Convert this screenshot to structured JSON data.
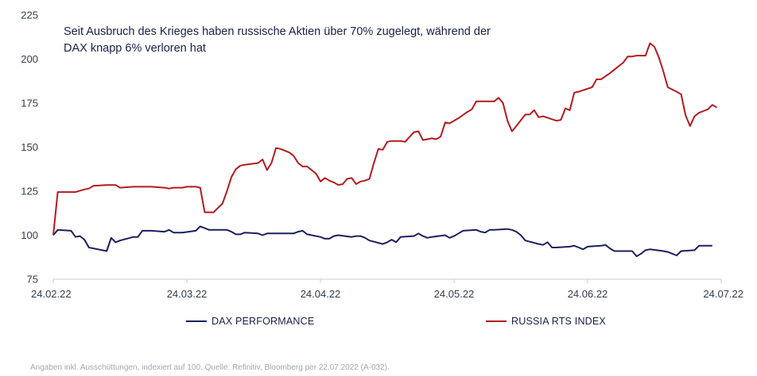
{
  "chart_data": {
    "type": "line",
    "annotation": "Seit Ausbruch des Krieges haben russische Aktien über 70% zugelegt, während der DAX knapp 6% verloren hat",
    "x_ticks": [
      "24.02.22",
      "24.03.22",
      "24.04.22",
      "24.05.22",
      "24.06.22",
      "24.07.22"
    ],
    "y_ticks": [
      75,
      100,
      125,
      150,
      175,
      200,
      225
    ],
    "ylim": [
      75,
      225
    ],
    "xlim": [
      "2022-02-24",
      "2022-07-24"
    ],
    "grid": false,
    "legend_position": "bottom",
    "series": [
      {
        "name": "DAX PERFORMANCE",
        "color": "#1b1f5e",
        "points": [
          [
            "2022-02-24",
            100
          ],
          [
            "2022-02-25",
            103
          ],
          [
            "2022-02-28",
            102.5
          ],
          [
            "2022-03-01",
            99
          ],
          [
            "2022-03-02",
            99.5
          ],
          [
            "2022-03-03",
            97.5
          ],
          [
            "2022-03-04",
            93
          ],
          [
            "2022-03-07",
            91.5
          ],
          [
            "2022-03-08",
            91
          ],
          [
            "2022-03-09",
            98.5
          ],
          [
            "2022-03-10",
            96
          ],
          [
            "2022-03-11",
            97
          ],
          [
            "2022-03-14",
            99
          ],
          [
            "2022-03-15",
            99
          ],
          [
            "2022-03-16",
            102.5
          ],
          [
            "2022-03-17",
            102.5
          ],
          [
            "2022-03-18",
            102.5
          ],
          [
            "2022-03-21",
            102
          ],
          [
            "2022-03-22",
            103
          ],
          [
            "2022-03-23",
            101.5
          ],
          [
            "2022-03-24",
            101.5
          ],
          [
            "2022-03-25",
            101.5
          ],
          [
            "2022-03-28",
            102.5
          ],
          [
            "2022-03-29",
            105
          ],
          [
            "2022-03-30",
            104
          ],
          [
            "2022-03-31",
            103
          ],
          [
            "2022-04-01",
            103
          ],
          [
            "2022-04-04",
            103
          ],
          [
            "2022-04-05",
            102
          ],
          [
            "2022-04-06",
            100.5
          ],
          [
            "2022-04-07",
            100.5
          ],
          [
            "2022-04-08",
            101.5
          ],
          [
            "2022-04-11",
            101
          ],
          [
            "2022-04-12",
            100
          ],
          [
            "2022-04-13",
            101
          ],
          [
            "2022-04-14",
            101
          ],
          [
            "2022-04-19",
            101
          ],
          [
            "2022-04-20",
            102
          ],
          [
            "2022-04-21",
            102.5
          ],
          [
            "2022-04-22",
            100.5
          ],
          [
            "2022-04-25",
            99
          ],
          [
            "2022-04-26",
            98
          ],
          [
            "2022-04-27",
            98
          ],
          [
            "2022-04-28",
            99.5
          ],
          [
            "2022-04-29",
            100
          ],
          [
            "2022-05-02",
            99
          ],
          [
            "2022-05-03",
            99.5
          ],
          [
            "2022-05-04",
            99.5
          ],
          [
            "2022-05-05",
            98.5
          ],
          [
            "2022-05-06",
            97
          ],
          [
            "2022-05-09",
            95
          ],
          [
            "2022-05-10",
            96
          ],
          [
            "2022-05-11",
            97.5
          ],
          [
            "2022-05-12",
            96
          ],
          [
            "2022-05-13",
            99
          ],
          [
            "2022-05-16",
            99.5
          ],
          [
            "2022-05-17",
            101
          ],
          [
            "2022-05-18",
            99.5
          ],
          [
            "2022-05-19",
            98.5
          ],
          [
            "2022-05-20",
            99
          ],
          [
            "2022-05-23",
            100
          ],
          [
            "2022-05-24",
            98.5
          ],
          [
            "2022-05-25",
            99.5
          ],
          [
            "2022-05-26",
            101
          ],
          [
            "2022-05-27",
            102.5
          ],
          [
            "2022-05-30",
            103
          ],
          [
            "2022-05-31",
            102
          ],
          [
            "2022-06-01",
            101.5
          ],
          [
            "2022-06-02",
            103
          ],
          [
            "2022-06-03",
            103
          ],
          [
            "2022-06-06",
            103.5
          ],
          [
            "2022-06-07",
            103
          ],
          [
            "2022-06-08",
            102
          ],
          [
            "2022-06-09",
            100
          ],
          [
            "2022-06-10",
            97
          ],
          [
            "2022-06-13",
            95
          ],
          [
            "2022-06-14",
            94.5
          ],
          [
            "2022-06-15",
            96
          ],
          [
            "2022-06-16",
            93
          ],
          [
            "2022-06-17",
            93
          ],
          [
            "2022-06-20",
            93.5
          ],
          [
            "2022-06-21",
            94
          ],
          [
            "2022-06-22",
            93
          ],
          [
            "2022-06-23",
            92
          ],
          [
            "2022-06-24",
            93.5
          ],
          [
            "2022-06-27",
            94
          ],
          [
            "2022-06-28",
            94.5
          ],
          [
            "2022-06-29",
            92.5
          ],
          [
            "2022-06-30",
            91
          ],
          [
            "2022-07-01",
            91
          ],
          [
            "2022-07-04",
            91
          ],
          [
            "2022-07-05",
            88
          ],
          [
            "2022-07-06",
            89.5
          ],
          [
            "2022-07-07",
            91.5
          ],
          [
            "2022-07-08",
            92
          ],
          [
            "2022-07-11",
            91
          ],
          [
            "2022-07-12",
            90.5
          ],
          [
            "2022-07-13",
            89.5
          ],
          [
            "2022-07-14",
            88.5
          ],
          [
            "2022-07-15",
            91
          ],
          [
            "2022-07-18",
            91.5
          ],
          [
            "2022-07-19",
            94
          ],
          [
            "2022-07-20",
            94
          ],
          [
            "2022-07-21",
            94
          ],
          [
            "2022-07-22",
            94
          ]
        ]
      },
      {
        "name": "RUSSIA RTS INDEX",
        "color": "#b31b20",
        "points": [
          [
            "2022-02-24",
            100
          ],
          [
            "2022-02-25",
            124.5
          ],
          [
            "2022-03-01",
            124.5
          ],
          [
            "2022-03-03",
            126
          ],
          [
            "2022-03-04",
            126.5
          ],
          [
            "2022-03-05",
            128
          ],
          [
            "2022-03-08",
            128.5
          ],
          [
            "2022-03-10",
            128.5
          ],
          [
            "2022-03-11",
            127
          ],
          [
            "2022-03-14",
            127.5
          ],
          [
            "2022-03-18",
            127.5
          ],
          [
            "2022-03-21",
            127
          ],
          [
            "2022-03-22",
            126.5
          ],
          [
            "2022-03-23",
            127
          ],
          [
            "2022-03-25",
            127
          ],
          [
            "2022-03-26",
            127.5
          ],
          [
            "2022-03-28",
            127.5
          ],
          [
            "2022-03-29",
            127
          ],
          [
            "2022-03-30",
            113
          ],
          [
            "2022-03-31",
            113
          ],
          [
            "2022-04-01",
            113
          ],
          [
            "2022-04-03",
            118
          ],
          [
            "2022-04-04",
            125
          ],
          [
            "2022-04-05",
            133
          ],
          [
            "2022-04-06",
            137.5
          ],
          [
            "2022-04-07",
            139.5
          ],
          [
            "2022-04-08",
            140
          ],
          [
            "2022-04-11",
            141
          ],
          [
            "2022-04-12",
            143
          ],
          [
            "2022-04-13",
            137
          ],
          [
            "2022-04-14",
            141
          ],
          [
            "2022-04-15",
            149.5
          ],
          [
            "2022-04-16",
            149
          ],
          [
            "2022-04-18",
            147
          ],
          [
            "2022-04-19",
            145
          ],
          [
            "2022-04-20",
            141
          ],
          [
            "2022-04-21",
            139
          ],
          [
            "2022-04-22",
            139
          ],
          [
            "2022-04-24",
            135
          ],
          [
            "2022-04-25",
            130.5
          ],
          [
            "2022-04-26",
            132.5
          ],
          [
            "2022-04-27",
            131
          ],
          [
            "2022-04-28",
            130
          ],
          [
            "2022-04-29",
            128.5
          ],
          [
            "2022-04-30",
            129
          ],
          [
            "2022-05-01",
            132
          ],
          [
            "2022-05-02",
            132.5
          ],
          [
            "2022-05-03",
            129
          ],
          [
            "2022-05-04",
            130.5
          ],
          [
            "2022-05-05",
            131
          ],
          [
            "2022-05-06",
            132
          ],
          [
            "2022-05-07",
            141
          ],
          [
            "2022-05-08",
            149
          ],
          [
            "2022-05-09",
            148.5
          ],
          [
            "2022-05-10",
            153
          ],
          [
            "2022-05-11",
            153.5
          ],
          [
            "2022-05-13",
            153.5
          ],
          [
            "2022-05-14",
            153
          ],
          [
            "2022-05-16",
            158.5
          ],
          [
            "2022-05-17",
            159
          ],
          [
            "2022-05-18",
            154
          ],
          [
            "2022-05-19",
            154.5
          ],
          [
            "2022-05-20",
            155
          ],
          [
            "2022-05-21",
            154.5
          ],
          [
            "2022-05-22",
            156
          ],
          [
            "2022-05-23",
            164
          ],
          [
            "2022-05-24",
            163.5
          ],
          [
            "2022-05-26",
            166.5
          ],
          [
            "2022-05-28",
            170
          ],
          [
            "2022-05-29",
            171.5
          ],
          [
            "2022-05-30",
            176
          ],
          [
            "2022-06-01",
            176
          ],
          [
            "2022-06-03",
            176
          ],
          [
            "2022-06-04",
            178
          ],
          [
            "2022-06-05",
            175
          ],
          [
            "2022-06-06",
            165
          ],
          [
            "2022-06-07",
            159
          ],
          [
            "2022-06-08",
            162
          ],
          [
            "2022-06-10",
            168.5
          ],
          [
            "2022-06-11",
            168.5
          ],
          [
            "2022-06-12",
            171
          ],
          [
            "2022-06-13",
            167
          ],
          [
            "2022-06-14",
            167.5
          ],
          [
            "2022-06-17",
            165
          ],
          [
            "2022-06-18",
            165.5
          ],
          [
            "2022-06-19",
            172
          ],
          [
            "2022-06-20",
            171
          ],
          [
            "2022-06-21",
            181
          ],
          [
            "2022-06-22",
            181.5
          ],
          [
            "2022-06-25",
            184
          ],
          [
            "2022-06-26",
            188.5
          ],
          [
            "2022-06-27",
            188.5
          ],
          [
            "2022-06-29",
            192
          ],
          [
            "2022-06-30",
            194
          ],
          [
            "2022-07-02",
            198
          ],
          [
            "2022-07-03",
            201.5
          ],
          [
            "2022-07-04",
            201.5
          ],
          [
            "2022-07-05",
            202
          ],
          [
            "2022-07-07",
            202
          ],
          [
            "2022-07-08",
            209
          ],
          [
            "2022-07-09",
            207
          ],
          [
            "2022-07-10",
            201
          ],
          [
            "2022-07-11",
            193
          ],
          [
            "2022-07-12",
            184
          ],
          [
            "2022-07-14",
            181.5
          ],
          [
            "2022-07-15",
            180
          ],
          [
            "2022-07-16",
            168
          ],
          [
            "2022-07-17",
            162
          ],
          [
            "2022-07-18",
            167.5
          ],
          [
            "2022-07-19",
            169.5
          ],
          [
            "2022-07-20",
            170.5
          ],
          [
            "2022-07-21",
            171.5
          ],
          [
            "2022-07-22",
            174
          ],
          [
            "2022-07-23",
            172.5
          ]
        ]
      }
    ],
    "footnote": "Angaben inkl. Ausschüttungen, indexiert auf 100. Quelle: Refinitiv, Bloomberg per 22.07.2022 (A-032)."
  }
}
